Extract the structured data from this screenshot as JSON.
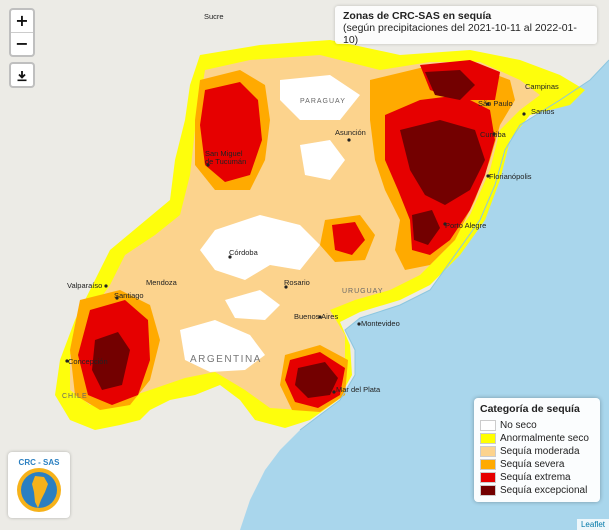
{
  "map": {
    "title": "Zonas de CRC-SAS en sequía",
    "subtitle": "(según precipitaciones del 2021-10-11 al 2022-01-10)",
    "zoom_in": "+",
    "zoom_out": "−",
    "download_icon": "download-icon",
    "attribution": "Leaflet",
    "logo_text": "CRC - SAS",
    "colors": {
      "ocean": "#a9d6ec",
      "land": "#ecebe6",
      "no_seco": "#ffffff",
      "anormalmente_seco": "#ffff00",
      "sequia_moderada": "#fcd38d",
      "sequia_severa": "#ffaa00",
      "sequia_extrema": "#e60000",
      "sequia_excepcional": "#730000"
    },
    "legend": {
      "title": "Categoría de sequía",
      "items": [
        {
          "label": "No seco",
          "color": "#ffffff"
        },
        {
          "label": "Anormalmente seco",
          "color": "#ffff00"
        },
        {
          "label": "Sequía moderada",
          "color": "#fcd38d"
        },
        {
          "label": "Sequía severa",
          "color": "#ffaa00"
        },
        {
          "label": "Sequía extrema",
          "color": "#e60000"
        },
        {
          "label": "Sequía excepcional",
          "color": "#730000"
        }
      ]
    },
    "places": {
      "sucre": "Sucre",
      "paraguay": "PARAGUAY",
      "asuncion": "Asunción",
      "campinas": "Campinas",
      "sao_paulo": "São Paulo",
      "santos": "Santos",
      "curitiba": "Curitiba",
      "san_miguel_1": "San Miguel",
      "san_miguel_2": "de Tucumán",
      "florianopolis": "Florianópolis",
      "porto_alegre": "Porto Alegre",
      "cordoba": "Córdoba",
      "valparaiso": "Valparaíso",
      "santiago": "Santiago",
      "mendoza": "Mendoza",
      "rosario": "Rosario",
      "uruguay": "URUGUAY",
      "buenos_aires": "Buenos Aires",
      "montevideo": "Montevideo",
      "argentina": "ARGENTINA",
      "concepcion": "Concepción",
      "chile": "CHILE",
      "mar_del_plata": "Mar del Plata"
    }
  }
}
